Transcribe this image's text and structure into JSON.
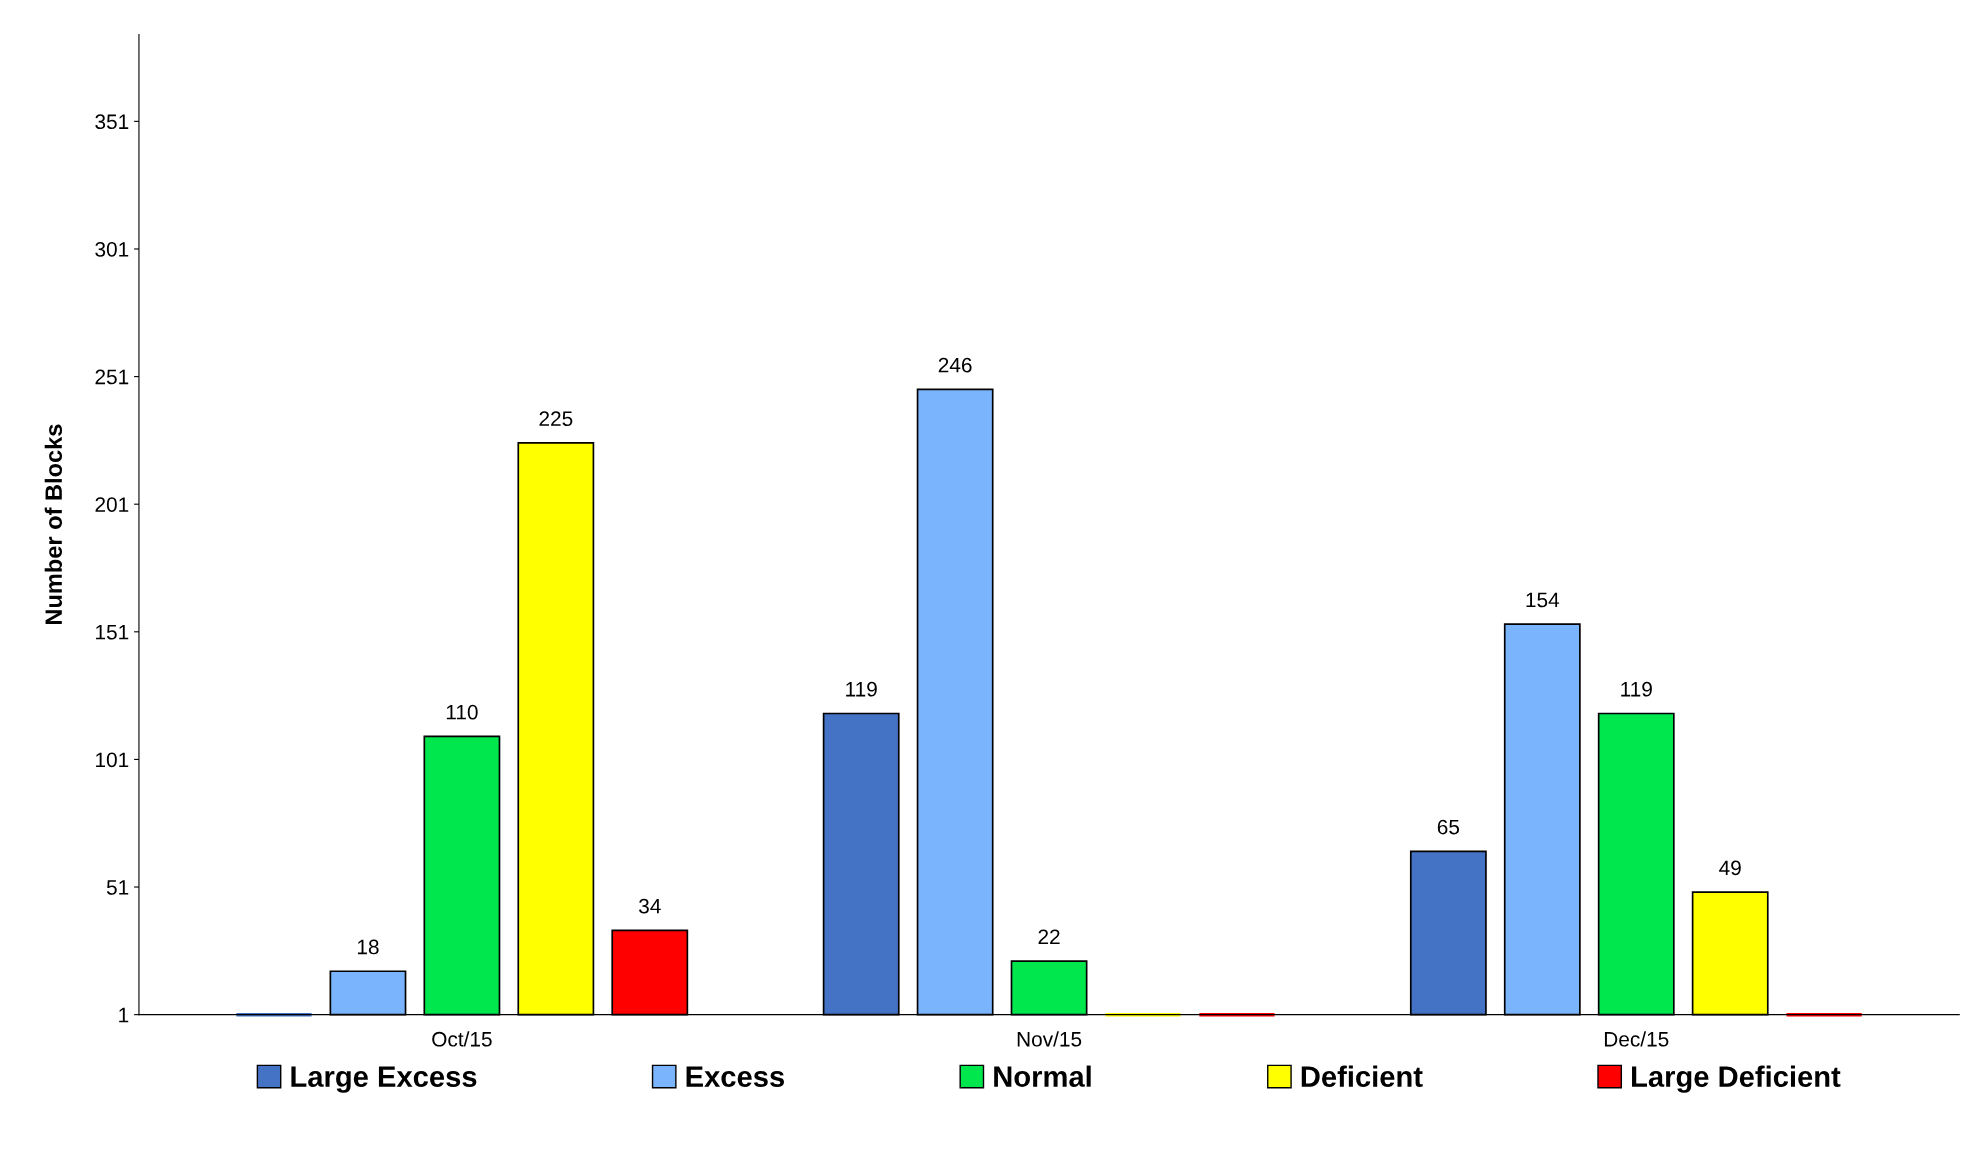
{
  "chart_data": {
    "type": "bar",
    "ylabel": "Number of Blocks",
    "categories": [
      "Oct/15",
      "Nov/15",
      "Dec/15"
    ],
    "series": [
      {
        "name": "Large Excess",
        "color": "#4472c4",
        "values": [
          1,
          119,
          65
        ],
        "value_labels": [
          null,
          "119",
          "65"
        ]
      },
      {
        "name": "Excess",
        "color": "#7ab4fc",
        "values": [
          18,
          246,
          154
        ],
        "value_labels": [
          "18",
          "246",
          "154"
        ]
      },
      {
        "name": "Normal",
        "color": "#00e64d",
        "values": [
          110,
          22,
          119
        ],
        "value_labels": [
          "110",
          "22",
          "119"
        ]
      },
      {
        "name": "Deficient",
        "color": "#ffff00",
        "values": [
          225,
          1,
          49
        ],
        "value_labels": [
          "225",
          null,
          "49"
        ]
      },
      {
        "name": "Large Deficient",
        "color": "#ff0000",
        "values": [
          34,
          1,
          1
        ],
        "value_labels": [
          "34",
          null,
          null
        ]
      }
    ],
    "ylim": [
      1,
      385
    ],
    "yticks": [
      1,
      51,
      101,
      151,
      201,
      251,
      301,
      351
    ],
    "grid": false,
    "legend": "bottom"
  }
}
